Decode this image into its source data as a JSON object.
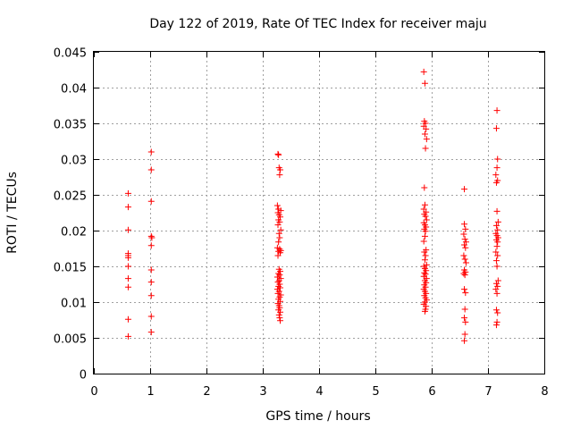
{
  "chart_data": {
    "type": "scatter",
    "title": "Day 122 of 2019, Rate Of TEC Index for receiver maju",
    "xlabel": "GPS time / hours",
    "ylabel": "ROTI / TECUs",
    "xlim": [
      0,
      8
    ],
    "ylim": [
      0,
      0.045
    ],
    "x_ticks": [
      {
        "value": 0,
        "label": "0"
      },
      {
        "value": 1,
        "label": "1"
      },
      {
        "value": 2,
        "label": "2"
      },
      {
        "value": 3,
        "label": "3"
      },
      {
        "value": 4,
        "label": "4"
      },
      {
        "value": 5,
        "label": "5"
      },
      {
        "value": 6,
        "label": "6"
      },
      {
        "value": 7,
        "label": "7"
      },
      {
        "value": 8,
        "label": "8"
      }
    ],
    "y_ticks": [
      {
        "value": 0,
        "label": "0"
      },
      {
        "value": 0.005,
        "label": "0.005"
      },
      {
        "value": 0.01,
        "label": "0.01"
      },
      {
        "value": 0.015,
        "label": "0.015"
      },
      {
        "value": 0.02,
        "label": "0.02"
      },
      {
        "value": 0.025,
        "label": "0.025"
      },
      {
        "value": 0.03,
        "label": "0.03"
      },
      {
        "value": 0.035,
        "label": "0.035"
      },
      {
        "value": 0.04,
        "label": "0.04"
      },
      {
        "value": 0.045,
        "label": "0.045"
      }
    ],
    "grid": true,
    "marker": "+",
    "marker_color": "#ff0000",
    "series": [
      {
        "name": "ROTI",
        "points": [
          [
            0.61,
            0.0252
          ],
          [
            0.61,
            0.0233
          ],
          [
            0.61,
            0.0201
          ],
          [
            0.61,
            0.0168
          ],
          [
            0.61,
            0.0165
          ],
          [
            0.61,
            0.0162
          ],
          [
            0.61,
            0.015
          ],
          [
            0.61,
            0.0133
          ],
          [
            0.61,
            0.0121
          ],
          [
            0.61,
            0.0076
          ],
          [
            0.61,
            0.0052
          ],
          [
            1.02,
            0.031
          ],
          [
            1.02,
            0.0285
          ],
          [
            1.02,
            0.0241
          ],
          [
            1.02,
            0.0192
          ],
          [
            1.03,
            0.019
          ],
          [
            1.02,
            0.0179
          ],
          [
            1.02,
            0.0145
          ],
          [
            1.02,
            0.0128
          ],
          [
            1.02,
            0.0109
          ],
          [
            1.02,
            0.008
          ],
          [
            1.02,
            0.0058
          ],
          [
            3.27,
            0.0307
          ],
          [
            3.28,
            0.0306
          ],
          [
            3.29,
            0.0288
          ],
          [
            3.31,
            0.0285
          ],
          [
            3.3,
            0.0278
          ],
          [
            3.26,
            0.0235
          ],
          [
            3.28,
            0.023
          ],
          [
            3.32,
            0.0228
          ],
          [
            3.27,
            0.0225
          ],
          [
            3.29,
            0.0222
          ],
          [
            3.31,
            0.0219
          ],
          [
            3.28,
            0.0215
          ],
          [
            3.3,
            0.0212
          ],
          [
            3.27,
            0.0208
          ],
          [
            3.32,
            0.0201
          ],
          [
            3.29,
            0.0196
          ],
          [
            3.3,
            0.019
          ],
          [
            3.28,
            0.0184
          ],
          [
            3.26,
            0.0176
          ],
          [
            3.3,
            0.0174
          ],
          [
            3.32,
            0.0172
          ],
          [
            3.28,
            0.0171
          ],
          [
            3.31,
            0.0169
          ],
          [
            3.27,
            0.0165
          ],
          [
            3.29,
            0.0146
          ],
          [
            3.31,
            0.0143
          ],
          [
            3.28,
            0.014
          ],
          [
            3.3,
            0.0138
          ],
          [
            3.26,
            0.0135
          ],
          [
            3.32,
            0.0133
          ],
          [
            3.29,
            0.013
          ],
          [
            3.27,
            0.0128
          ],
          [
            3.3,
            0.0125
          ],
          [
            3.28,
            0.0122
          ],
          [
            3.31,
            0.012
          ],
          [
            3.26,
            0.0118
          ],
          [
            3.29,
            0.0115
          ],
          [
            3.27,
            0.0112
          ],
          [
            3.32,
            0.011
          ],
          [
            3.3,
            0.0107
          ],
          [
            3.28,
            0.0104
          ],
          [
            3.31,
            0.0101
          ],
          [
            3.27,
            0.0098
          ],
          [
            3.29,
            0.0095
          ],
          [
            3.3,
            0.0092
          ],
          [
            3.28,
            0.0089
          ],
          [
            3.31,
            0.0086
          ],
          [
            3.29,
            0.0082
          ],
          [
            3.3,
            0.0078
          ],
          [
            3.31,
            0.0074
          ],
          [
            5.86,
            0.0422
          ],
          [
            5.88,
            0.0406
          ],
          [
            5.87,
            0.0353
          ],
          [
            5.89,
            0.035
          ],
          [
            5.86,
            0.0346
          ],
          [
            5.9,
            0.0342
          ],
          [
            5.88,
            0.0335
          ],
          [
            5.91,
            0.0328
          ],
          [
            5.89,
            0.0315
          ],
          [
            5.87,
            0.026
          ],
          [
            5.88,
            0.0236
          ],
          [
            5.86,
            0.023
          ],
          [
            5.9,
            0.0226
          ],
          [
            5.87,
            0.0223
          ],
          [
            5.89,
            0.022
          ],
          [
            5.91,
            0.0215
          ],
          [
            5.86,
            0.0211
          ],
          [
            5.88,
            0.0208
          ],
          [
            5.9,
            0.0205
          ],
          [
            5.87,
            0.0202
          ],
          [
            5.89,
            0.0199
          ],
          [
            5.88,
            0.0192
          ],
          [
            5.86,
            0.0185
          ],
          [
            5.9,
            0.0173
          ],
          [
            5.87,
            0.017
          ],
          [
            5.89,
            0.0165
          ],
          [
            5.88,
            0.0159
          ],
          [
            5.91,
            0.0152
          ],
          [
            5.86,
            0.015
          ],
          [
            5.88,
            0.0147
          ],
          [
            5.9,
            0.0144
          ],
          [
            5.87,
            0.0141
          ],
          [
            5.89,
            0.0139
          ],
          [
            5.86,
            0.0136
          ],
          [
            5.91,
            0.0133
          ],
          [
            5.88,
            0.013
          ],
          [
            5.9,
            0.0127
          ],
          [
            5.87,
            0.0124
          ],
          [
            5.89,
            0.0121
          ],
          [
            5.86,
            0.0118
          ],
          [
            5.88,
            0.0115
          ],
          [
            5.9,
            0.0112
          ],
          [
            5.87,
            0.0109
          ],
          [
            5.89,
            0.0106
          ],
          [
            5.91,
            0.0103
          ],
          [
            5.88,
            0.01
          ],
          [
            5.86,
            0.0097
          ],
          [
            5.9,
            0.0094
          ],
          [
            5.89,
            0.009
          ],
          [
            5.88,
            0.0087
          ],
          [
            6.58,
            0.0258
          ],
          [
            6.58,
            0.0209
          ],
          [
            6.6,
            0.0202
          ],
          [
            6.57,
            0.0195
          ],
          [
            6.59,
            0.0188
          ],
          [
            6.61,
            0.0184
          ],
          [
            6.58,
            0.018
          ],
          [
            6.6,
            0.0176
          ],
          [
            6.57,
            0.0165
          ],
          [
            6.59,
            0.016
          ],
          [
            6.61,
            0.0155
          ],
          [
            6.58,
            0.0145
          ],
          [
            6.6,
            0.0142
          ],
          [
            6.57,
            0.014
          ],
          [
            6.59,
            0.0138
          ],
          [
            6.58,
            0.0118
          ],
          [
            6.6,
            0.0113
          ],
          [
            6.59,
            0.009
          ],
          [
            6.58,
            0.0078
          ],
          [
            6.6,
            0.0072
          ],
          [
            6.59,
            0.0055
          ],
          [
            6.58,
            0.0046
          ],
          [
            7.16,
            0.0368
          ],
          [
            7.15,
            0.0343
          ],
          [
            7.17,
            0.03
          ],
          [
            7.16,
            0.0288
          ],
          [
            7.14,
            0.0278
          ],
          [
            7.17,
            0.027
          ],
          [
            7.15,
            0.0267
          ],
          [
            7.16,
            0.0227
          ],
          [
            7.18,
            0.0212
          ],
          [
            7.15,
            0.0207
          ],
          [
            7.17,
            0.0201
          ],
          [
            7.14,
            0.0196
          ],
          [
            7.16,
            0.0193
          ],
          [
            7.18,
            0.019
          ],
          [
            7.15,
            0.0187
          ],
          [
            7.17,
            0.0184
          ],
          [
            7.16,
            0.0178
          ],
          [
            7.14,
            0.017
          ],
          [
            7.17,
            0.0165
          ],
          [
            7.15,
            0.0158
          ],
          [
            7.16,
            0.015
          ],
          [
            7.18,
            0.013
          ],
          [
            7.15,
            0.0126
          ],
          [
            7.17,
            0.0122
          ],
          [
            7.14,
            0.0118
          ],
          [
            7.16,
            0.0112
          ],
          [
            7.15,
            0.0089
          ],
          [
            7.17,
            0.0085
          ],
          [
            7.16,
            0.0072
          ],
          [
            7.15,
            0.0068
          ]
        ]
      }
    ]
  }
}
